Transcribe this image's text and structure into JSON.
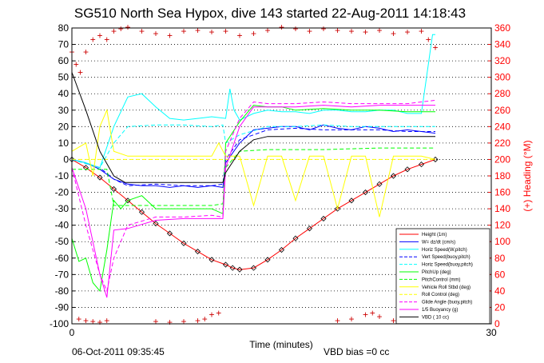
{
  "chart_data": {
    "type": "line",
    "title": "SG510 North Sea Hypox, dive 143 started 22-Aug-2011 14:18:43",
    "xlabel": "Time (minutes)",
    "ylabel_right": "(+) Heading (°M)",
    "xlim": [
      0,
      30
    ],
    "ylim_left": [
      -100,
      80
    ],
    "ylim_right": [
      0,
      360
    ],
    "x_ticks": [
      "0",
      "30"
    ],
    "y_ticks_left": [
      "80",
      "70",
      "60",
      "50",
      "40",
      "30",
      "20",
      "10",
      "0",
      "-10",
      "-20",
      "-30",
      "-40",
      "-50",
      "-60",
      "-70",
      "-80",
      "-90",
      "-100"
    ],
    "y_ticks_right": [
      "360",
      "340",
      "320",
      "300",
      "280",
      "260",
      "240",
      "220",
      "200",
      "180",
      "160",
      "140",
      "120",
      "100",
      "80",
      "60",
      "40",
      "20",
      "0"
    ],
    "grid": "horizontal dotted",
    "legend_position": "bottom-right",
    "footer_left": "06-Oct-2011 09:35:45",
    "footer_right": "VBD bias =0 cc",
    "colors": {
      "height": "#ff0000",
      "w": "#0000ff",
      "horiz": "#00ffff",
      "pitchup": "#00ff00",
      "pitchctl": "#00ff00",
      "vehroll": "#ffff00",
      "rollctl": "#ffff00",
      "glide": "#ff00ff",
      "buoy": "#ff00ff",
      "vbd": "#000000",
      "heading": "#cc0000"
    },
    "series": [
      {
        "name": "Height (1m)",
        "color": "#ff0000",
        "style": "solid",
        "marker": "diamond",
        "x": [
          0,
          1,
          2,
          3,
          4,
          5,
          6,
          7,
          8,
          9,
          10,
          11,
          11.5,
          12,
          13,
          14,
          15,
          16,
          17,
          18,
          19,
          20,
          21,
          22,
          23,
          24,
          25,
          26
        ],
        "y": [
          0,
          -5,
          -11,
          -18,
          -25,
          -32,
          -39,
          -45,
          -51,
          -56,
          -61,
          -64,
          -66,
          -67,
          -66,
          -61,
          -55,
          -48,
          -42,
          -36,
          -30,
          -25,
          -20,
          -15,
          -10,
          -6,
          -3,
          0
        ]
      },
      {
        "name": "W= dz/dt (cm/s)",
        "color": "#0000ff",
        "style": "solid",
        "x": [
          0,
          1,
          2,
          3,
          4,
          5,
          6,
          7,
          8,
          9,
          10,
          10.8,
          11,
          12,
          13,
          14,
          15,
          16,
          17,
          18,
          19,
          20,
          21,
          22,
          23,
          24,
          25,
          26
        ],
        "y": [
          0,
          -2,
          -6,
          -12,
          -15,
          -16,
          -16,
          -17,
          -16,
          -17,
          -16,
          -17,
          -2,
          10,
          18,
          19,
          20,
          20,
          18,
          21,
          19,
          18,
          20,
          19,
          17,
          18,
          17,
          16
        ]
      },
      {
        "name": "Horiz Speed(W,pitch)",
        "color": "#00ffff",
        "style": "solid",
        "x": [
          0,
          1,
          2,
          3,
          4,
          5,
          6,
          7,
          8,
          9,
          10,
          11,
          11.3,
          11.6,
          12,
          13,
          14,
          15,
          16,
          17,
          18,
          19,
          20,
          21,
          22,
          23,
          24,
          25,
          25.8,
          26
        ],
        "y": [
          0,
          -2,
          -5,
          20,
          38,
          40,
          32,
          25,
          24,
          25,
          26,
          25,
          43,
          30,
          24,
          28,
          30,
          29,
          29,
          28,
          30,
          30,
          29,
          29,
          30,
          30,
          28,
          28,
          76,
          76
        ]
      },
      {
        "name": "Vert Speed(buoy,pitch)",
        "color": "#0000ff",
        "style": "dashed",
        "x": [
          0,
          2,
          3,
          4,
          6,
          8,
          10,
          10.8,
          11,
          12,
          14,
          16,
          18,
          20,
          22,
          24,
          26
        ],
        "y": [
          0,
          -5,
          -12,
          -16,
          -15,
          -16,
          -16,
          -15,
          0,
          12,
          18,
          19,
          18,
          18,
          18,
          17,
          17
        ]
      },
      {
        "name": "Horiz Speed(buoy,pitch)",
        "color": "#00ffff",
        "style": "dashed",
        "x": [
          0,
          2,
          3,
          4,
          6,
          8,
          10,
          10.8,
          11,
          12,
          14,
          16,
          18,
          20,
          22,
          24,
          26
        ],
        "y": [
          0,
          -5,
          10,
          20,
          21,
          21,
          20,
          21,
          10,
          15,
          20,
          20,
          21,
          20,
          20,
          20,
          20
        ]
      },
      {
        "name": "PitchUp (deg)",
        "color": "#00ff00",
        "style": "solid",
        "x": [
          0,
          0.5,
          1,
          1.5,
          2,
          2.5,
          3,
          3.5,
          4,
          5,
          6,
          7,
          8,
          10,
          10.8,
          11,
          12,
          13,
          14,
          15,
          16,
          18,
          20,
          22,
          24,
          26
        ],
        "y": [
          -48,
          -62,
          -60,
          -75,
          -80,
          -55,
          -25,
          -30,
          -25,
          -22,
          -30,
          -30,
          -30,
          -30,
          -33,
          10,
          23,
          33,
          32,
          32,
          30,
          31,
          30,
          30,
          29,
          29
        ]
      },
      {
        "name": "PitchControl (mm)",
        "color": "#00ff00",
        "style": "dashed",
        "x": [
          0,
          2,
          2.5,
          3,
          6,
          10,
          10.8,
          11,
          12,
          14,
          18,
          22,
          26
        ],
        "y": [
          -6,
          -6,
          -6,
          -28,
          -28,
          -28,
          -27,
          -5,
          5,
          6,
          6,
          7,
          7
        ]
      },
      {
        "name": "Vehicle Roll Stbd (deg)",
        "color": "#ffff00",
        "style": "solid",
        "x": [
          0,
          1,
          1.5,
          2,
          2.5,
          3,
          4,
          5,
          6,
          8,
          10,
          10.5,
          11,
          12,
          13,
          14,
          15,
          16,
          17,
          18,
          19,
          20,
          21,
          22,
          23,
          24,
          25,
          26
        ],
        "y": [
          5,
          10,
          -10,
          20,
          30,
          5,
          2,
          2,
          2,
          2,
          2,
          10,
          2,
          2,
          -28,
          2,
          2,
          -25,
          2,
          2,
          -30,
          2,
          2,
          -35,
          2,
          2,
          2,
          0
        ]
      },
      {
        "name": "Roll Control (deg)",
        "color": "#ffff00",
        "style": "dashed",
        "x": [
          0,
          1,
          2,
          3,
          4,
          6,
          8,
          10,
          11,
          12,
          14,
          16,
          18,
          20,
          22,
          24,
          26
        ],
        "y": [
          0,
          0,
          0,
          0,
          0,
          0,
          0,
          0,
          0,
          0,
          0,
          0,
          0,
          0,
          0,
          0,
          0
        ]
      },
      {
        "name": "Glide Angle (buoy,pitch)",
        "color": "#ff00ff",
        "style": "dashed",
        "x": [
          0,
          1,
          2,
          2.5,
          3,
          4,
          6,
          8,
          10,
          10.8,
          11,
          12,
          13,
          14,
          16,
          18,
          20,
          22,
          24,
          26
        ],
        "y": [
          -5,
          -40,
          -70,
          -80,
          -60,
          -40,
          -35,
          -35,
          -34,
          -35,
          5,
          25,
          35,
          34,
          34,
          35,
          34,
          34,
          34,
          36
        ]
      },
      {
        "name": "1/5 Buoyancy (g)",
        "color": "#ff00ff",
        "style": "solid",
        "x": [
          0,
          1,
          2,
          2.5,
          3,
          4,
          6,
          8,
          10,
          10.8,
          11,
          12,
          13,
          14,
          16,
          18,
          20,
          22,
          24,
          26
        ],
        "y": [
          -5,
          -30,
          -70,
          -84,
          -43,
          -42,
          -37,
          -36,
          -36,
          -36,
          -5,
          20,
          32,
          32,
          32,
          33,
          32,
          33,
          33,
          33
        ]
      },
      {
        "name": "VBD ( 10 cc)",
        "color": "#000000",
        "style": "solid",
        "x": [
          0,
          1,
          2,
          3,
          3.8,
          4,
          6,
          8,
          10,
          10.8,
          11,
          12,
          13,
          14,
          16,
          18,
          20,
          22,
          24,
          26
        ],
        "y": [
          53,
          30,
          5,
          -10,
          -14,
          -14,
          -14,
          -14,
          -14,
          -14,
          -8,
          5,
          12,
          14,
          14,
          14,
          14,
          14,
          14,
          14
        ]
      }
    ],
    "heading_series": {
      "name": "Heading",
      "axis": "right",
      "color": "#cc0000",
      "x": [
        0,
        0.3,
        0.6,
        1,
        1.5,
        2,
        2.5,
        3,
        3.5,
        4,
        5,
        6,
        7,
        8,
        9,
        10,
        11,
        12,
        13,
        14,
        15,
        16,
        17,
        18,
        19,
        20,
        21,
        22,
        23,
        24,
        25,
        25.5,
        26
      ],
      "y": [
        330,
        315,
        305,
        330,
        345,
        350,
        345,
        355,
        358,
        360,
        355,
        352,
        350,
        355,
        356,
        354,
        355,
        350,
        352,
        356,
        360,
        358,
        355,
        358,
        356,
        355,
        354,
        356,
        352,
        354,
        355,
        345,
        335
      ]
    },
    "heading_bottom_series": {
      "x": [
        0.5,
        1,
        1.5,
        2,
        2.5,
        6,
        7,
        8,
        9,
        9.5,
        10,
        10.5,
        19,
        20,
        21,
        21.5,
        22,
        23
      ],
      "y": [
        5,
        3,
        2,
        1,
        3,
        2,
        1,
        2,
        3,
        5,
        10,
        12,
        3,
        5,
        10,
        12,
        8,
        3
      ]
    }
  }
}
